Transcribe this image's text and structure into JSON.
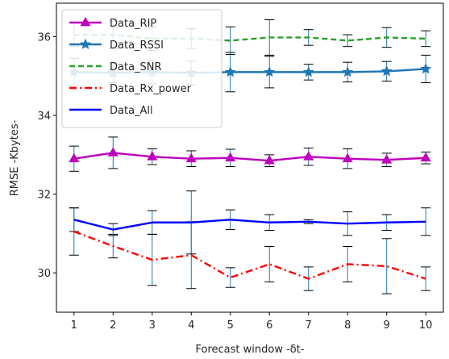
{
  "chart_data": {
    "type": "line",
    "xlabel": "Forecast window -δt-",
    "ylabel": "RMSE -Kbytes-",
    "x": [
      1,
      2,
      3,
      4,
      5,
      6,
      7,
      8,
      9,
      10
    ],
    "xlim": [
      0.55,
      10.45
    ],
    "ylim": [
      29.0,
      36.85
    ],
    "xticks": [
      "1",
      "2",
      "3",
      "4",
      "5",
      "6",
      "7",
      "8",
      "9",
      "10"
    ],
    "yticks": [
      30,
      32,
      34,
      36
    ],
    "grid": false,
    "legend_position": "top-left",
    "series": [
      {
        "name": "Data_RIP",
        "color": "#bf00bf",
        "line_style": "solid",
        "marker": "triangle",
        "values": [
          32.9,
          33.05,
          32.95,
          32.9,
          32.92,
          32.85,
          32.95,
          32.9,
          32.87,
          32.92
        ],
        "error": [
          0.32,
          0.4,
          0.2,
          0.2,
          0.22,
          0.15,
          0.22,
          0.25,
          0.17,
          0.15
        ]
      },
      {
        "name": "Data_RSSI",
        "color": "#1f77b4",
        "line_style": "solid",
        "marker": "star",
        "values": [
          35.1,
          35.08,
          35.1,
          35.08,
          35.1,
          35.1,
          35.1,
          35.1,
          35.12,
          35.18
        ],
        "error": [
          0.35,
          0.25,
          0.3,
          0.3,
          0.5,
          0.4,
          0.2,
          0.25,
          0.25,
          0.35
        ]
      },
      {
        "name": "Data_SNR",
        "color": "#2ca02c",
        "line_style": "dashed",
        "marker": "none",
        "values": [
          36.05,
          36.05,
          35.95,
          35.95,
          35.9,
          35.98,
          35.98,
          35.9,
          35.98,
          35.95
        ],
        "error": [
          0.3,
          0.35,
          0.3,
          0.25,
          0.35,
          0.45,
          0.2,
          0.15,
          0.25,
          0.2
        ]
      },
      {
        "name": "Data_Rx_power",
        "color": "#ff0000",
        "line_style": "dashdot",
        "marker": "none",
        "values": [
          31.05,
          30.68,
          30.33,
          30.45,
          29.88,
          30.22,
          29.85,
          30.22,
          30.17,
          29.85
        ],
        "error": [
          0.6,
          0.3,
          0.65,
          0.85,
          0.25,
          0.45,
          0.3,
          0.45,
          0.7,
          0.3
        ]
      },
      {
        "name": "Data_All",
        "color": "#0000ff",
        "line_style": "solid",
        "marker": "none",
        "values": [
          31.35,
          31.1,
          31.28,
          31.28,
          31.35,
          31.28,
          31.3,
          31.25,
          31.28,
          31.3
        ],
        "error": [
          0.3,
          0.15,
          0.3,
          0.8,
          0.25,
          0.2,
          0.05,
          0.3,
          0.2,
          0.35
        ]
      }
    ]
  }
}
